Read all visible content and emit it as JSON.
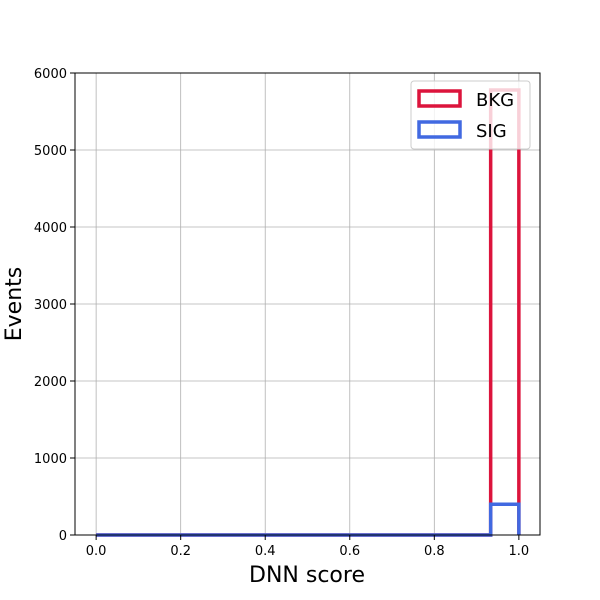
{
  "chart_data": {
    "type": "histogram",
    "xlabel": "DNN score",
    "ylabel": "Events",
    "xlim": [
      -0.05,
      1.05
    ],
    "ylim": [
      0,
      6000
    ],
    "xticks": [
      0.0,
      0.2,
      0.4,
      0.6,
      0.8,
      1.0
    ],
    "xtick_labels": [
      "0.0",
      "0.2",
      "0.4",
      "0.6",
      "0.8",
      "1.0"
    ],
    "yticks": [
      0,
      1000,
      2000,
      3000,
      4000,
      5000,
      6000
    ],
    "ytick_labels": [
      "0",
      "1000",
      "2000",
      "3000",
      "4000",
      "5000",
      "6000"
    ],
    "grid": true,
    "legend_position": "top-right",
    "bin_edges": [
      0.0,
      0.0667,
      0.1333,
      0.2,
      0.2667,
      0.3333,
      0.4,
      0.4667,
      0.5333,
      0.6,
      0.6667,
      0.7333,
      0.8,
      0.8667,
      0.9333,
      1.0
    ],
    "series": [
      {
        "name": "BKG",
        "color": "#dc143c",
        "counts": [
          0,
          0,
          0,
          0,
          0,
          0,
          0,
          0,
          0,
          0,
          0,
          0,
          0,
          0,
          5780
        ]
      },
      {
        "name": "SIG",
        "color": "#4169e1",
        "counts": [
          0,
          0,
          0,
          0,
          0,
          0,
          0,
          0,
          0,
          0,
          0,
          0,
          0,
          0,
          400
        ]
      }
    ]
  }
}
